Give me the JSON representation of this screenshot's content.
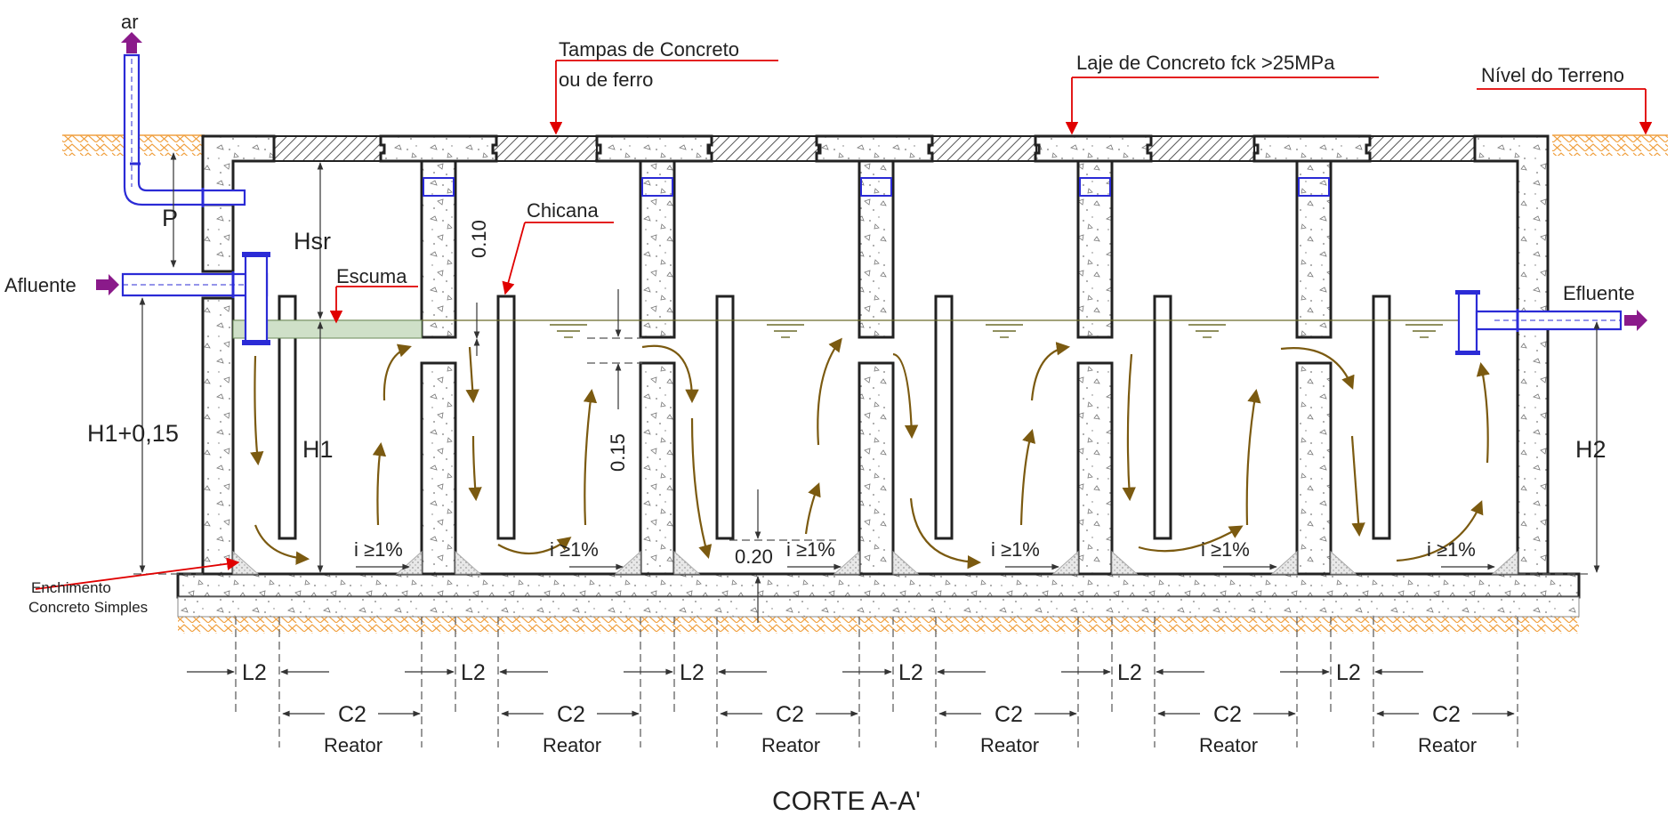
{
  "title": "CORTE A-A'",
  "labels": {
    "air": "ar",
    "top_covers_line1": "Tampas de Concreto",
    "top_covers_line2": "ou de ferro",
    "slab": "Laje de Concreto fck >25MPa",
    "ground_level": "Nível do Terreno",
    "chicane": "Chicana",
    "scum": "Escuma",
    "influent": "Afluente",
    "effluent": "Efluente",
    "fill_line1": "Enchimento",
    "fill_line2": "Concreto Simples"
  },
  "dimensions": {
    "p": "P",
    "hsr": "Hsr",
    "h1_plus": "H1+0,15",
    "h1": "H1",
    "h2": "H2",
    "d010": "0.10",
    "d015": "0.15",
    "d020": "0.20"
  },
  "slope_label": "i ≥1%",
  "chambers": [
    {
      "l2": "L2",
      "c2": "C2",
      "reactor": "Reator"
    },
    {
      "l2": "L2",
      "c2": "C2",
      "reactor": "Reator"
    },
    {
      "l2": "L2",
      "c2": "C2",
      "reactor": "Reator"
    },
    {
      "l2": "L2",
      "c2": "C2",
      "reactor": "Reator"
    },
    {
      "l2": "L2",
      "c2": "C2",
      "reactor": "Reator"
    },
    {
      "l2": "L2",
      "c2": "C2",
      "reactor": "Reator"
    }
  ],
  "colors": {
    "concrete_outline": "#222222",
    "pipe": "#2b2bd6",
    "leader": "#e00000",
    "flow_arrow": "#7b5a10",
    "soil": "#f0a040",
    "arrow_tip": "#8a1a8a",
    "scum": "#cfe0c8"
  }
}
